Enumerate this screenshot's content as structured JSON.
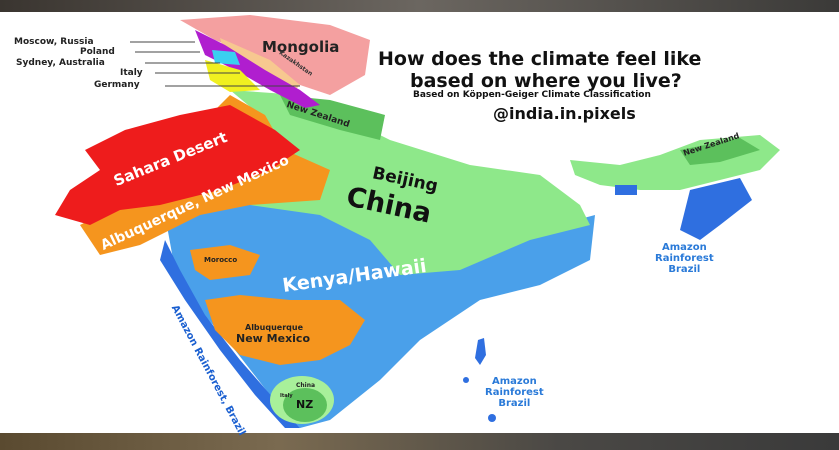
{
  "title_line1": "How does the climate feel like",
  "title_line2": "based on where you live?",
  "subtitle": "Based on Köppen-Geiger Climate Classification",
  "handle": "@india.in.pixels",
  "legend_pointers": [
    "Moscow, Russia",
    "Poland",
    "Sydney, Australia",
    "Italy",
    "Germany"
  ],
  "regions": {
    "mongolia": "Mongolia",
    "kazakhstan": "Kazakhstan",
    "new_zealand_north": "New Zealand",
    "new_zealand_ne": "New Zealand",
    "sahara": "Sahara Desert",
    "albuquerque_nw": "Albuquerque, New Mexico",
    "beijing": "Beijing",
    "china": "China",
    "kenya": "Kenya/Hawaii",
    "morocco": "Morocco",
    "albuquerque_s1": "Albuquerque",
    "albuquerque_s2": "New Mexico",
    "amazon_west": "Amazon Rainforest, Brazil",
    "amazon_ne": [
      "Amazon",
      "Rainforest",
      "Brazil"
    ],
    "amazon_islands": [
      "Amazon",
      "Rainforest",
      "Brazil"
    ],
    "china_south": "China",
    "italy_south": "Italy",
    "nz_south": "NZ"
  },
  "colors": {
    "tropical_rain": "#2f6fe0",
    "tropical_savanna": "#4aa0ea",
    "arid_desert": "#ee1c1c",
    "semi_arid": "#f5951e",
    "humid_subtropical": "#8ee88a",
    "temperate_green": "#5cc05c",
    "tundra_pink": "#f4a0a0",
    "subarctic_purple": "#b01ecf",
    "yellow": "#f0f020",
    "cyan": "#3ad0f0"
  }
}
